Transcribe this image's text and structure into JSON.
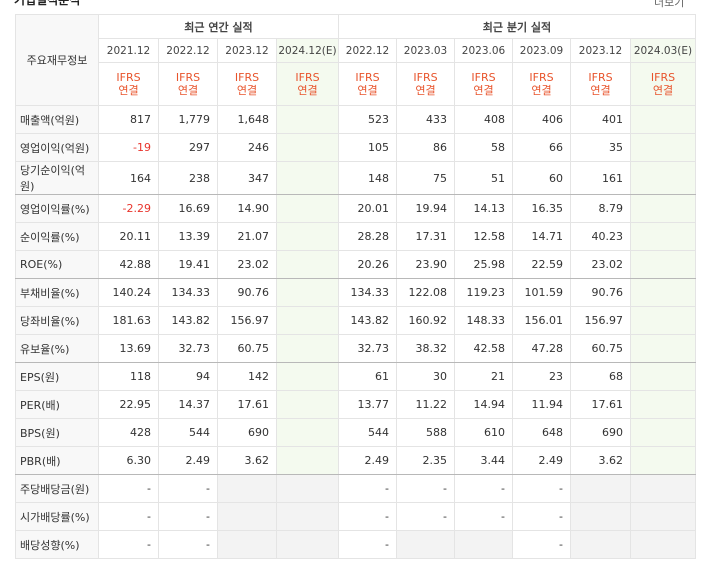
{
  "header": {
    "title": "기업실적분석",
    "more": "더보기"
  },
  "table": {
    "corner": "주요재무정보",
    "groups": [
      "최근 연간 실적",
      "최근 분기 실적"
    ],
    "periods": [
      [
        "2021.12",
        "2022.12",
        "2023.12",
        "2024.12(E)"
      ],
      [
        "2022.12",
        "2023.03",
        "2023.06",
        "2023.09",
        "2023.12",
        "2024.03(E)"
      ]
    ],
    "accounting": [
      [
        "IFRS",
        "연결"
      ],
      [
        "IFRS",
        "연결"
      ],
      [
        "IFRS",
        "연결"
      ],
      [
        "IFRS",
        "연결"
      ],
      [
        "IFRS",
        "연결"
      ],
      [
        "IFRS",
        "연결"
      ],
      [
        "IFRS",
        "연결"
      ],
      [
        "IFRS",
        "연결"
      ],
      [
        "IFRS",
        "연결"
      ],
      [
        "IFRS",
        "연결"
      ]
    ],
    "rows": [
      {
        "label": "매출액(억원)",
        "cells": [
          "817",
          "1,779",
          "1,648",
          null,
          "523",
          "433",
          "408",
          "406",
          "401",
          null
        ]
      },
      {
        "label": "영업이익(억원)",
        "cells": [
          "-19",
          "297",
          "246",
          null,
          "105",
          "86",
          "58",
          "66",
          "35",
          null
        ]
      },
      {
        "label": "당기순이익(억원)",
        "cells": [
          "164",
          "238",
          "347",
          null,
          "148",
          "75",
          "51",
          "60",
          "161",
          null
        ]
      },
      {
        "label": "영업이익률(%)",
        "cells": [
          "-2.29",
          "16.69",
          "14.90",
          null,
          "20.01",
          "19.94",
          "14.13",
          "16.35",
          "8.79",
          null
        ]
      },
      {
        "label": "순이익률(%)",
        "cells": [
          "20.11",
          "13.39",
          "21.07",
          null,
          "28.28",
          "17.31",
          "12.58",
          "14.71",
          "40.23",
          null
        ]
      },
      {
        "label": "ROE(%)",
        "cells": [
          "42.88",
          "19.41",
          "23.02",
          null,
          "20.26",
          "23.90",
          "25.98",
          "22.59",
          "23.02",
          null
        ]
      },
      {
        "label": "부채비율(%)",
        "cells": [
          "140.24",
          "134.33",
          "90.76",
          null,
          "134.33",
          "122.08",
          "119.23",
          "101.59",
          "90.76",
          null
        ]
      },
      {
        "label": "당좌비율(%)",
        "cells": [
          "181.63",
          "143.82",
          "156.97",
          null,
          "143.82",
          "160.92",
          "148.33",
          "156.01",
          "156.97",
          null
        ]
      },
      {
        "label": "유보율(%)",
        "cells": [
          "13.69",
          "32.73",
          "60.75",
          null,
          "32.73",
          "38.32",
          "42.58",
          "47.28",
          "60.75",
          null
        ]
      },
      {
        "label": "EPS(원)",
        "cells": [
          "118",
          "94",
          "142",
          null,
          "61",
          "30",
          "21",
          "23",
          "68",
          null
        ]
      },
      {
        "label": "PER(배)",
        "cells": [
          "22.95",
          "14.37",
          "17.61",
          null,
          "13.77",
          "11.22",
          "14.94",
          "11.94",
          "17.61",
          null
        ]
      },
      {
        "label": "BPS(원)",
        "cells": [
          "428",
          "544",
          "690",
          null,
          "544",
          "588",
          "610",
          "648",
          "690",
          null
        ]
      },
      {
        "label": "PBR(배)",
        "cells": [
          "6.30",
          "2.49",
          "3.62",
          null,
          "2.49",
          "2.35",
          "3.44",
          "2.49",
          "3.62",
          null
        ]
      },
      {
        "label": "주당배당금(원)",
        "cells": [
          "-",
          "-",
          null,
          null,
          "-",
          "-",
          "-",
          "-",
          null,
          null
        ]
      },
      {
        "label": "시가배당률(%)",
        "cells": [
          "-",
          "-",
          null,
          null,
          "-",
          "-",
          "-",
          "-",
          null,
          null
        ]
      },
      {
        "label": "배당성향(%)",
        "cells": [
          "-",
          "-",
          null,
          null,
          "-",
          null,
          null,
          "-",
          null,
          null
        ]
      }
    ]
  }
}
